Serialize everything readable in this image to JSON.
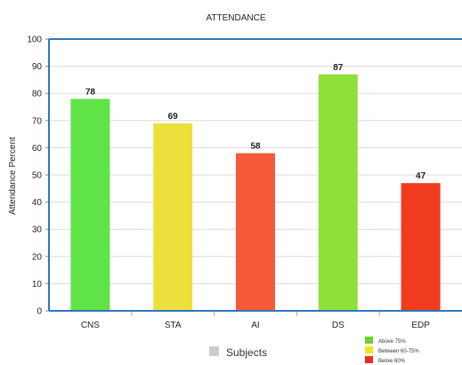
{
  "chart_data": {
    "type": "bar",
    "title": "ATTENDANCE",
    "xlabel": "Subjects",
    "ylabel": "Attendance Percent",
    "ylim": [
      0,
      100
    ],
    "yticks": [
      "0",
      "10",
      "20",
      "30",
      "40",
      "50",
      "60",
      "70",
      "80",
      "90",
      "100"
    ],
    "categories": [
      "CNS",
      "STA",
      "AI",
      "DS",
      "EDP"
    ],
    "values": [
      78,
      69,
      58,
      87,
      47
    ],
    "data_labels": [
      "78",
      "69",
      "58",
      "87",
      "47"
    ],
    "bar_colors": [
      "#5fe346",
      "#ede03d",
      "#f65a3a",
      "#8fe03a",
      "#f23c1e"
    ],
    "grid": true,
    "legend_placement": "bottom-right",
    "legend": [
      {
        "label": "Above 75%",
        "color": "#6fd12d"
      },
      {
        "label": "Between 60-75%",
        "color": "#f2e51c"
      },
      {
        "label": "Below 60%",
        "color": "#e8301d"
      }
    ],
    "frame_color": "#2f78b9"
  }
}
